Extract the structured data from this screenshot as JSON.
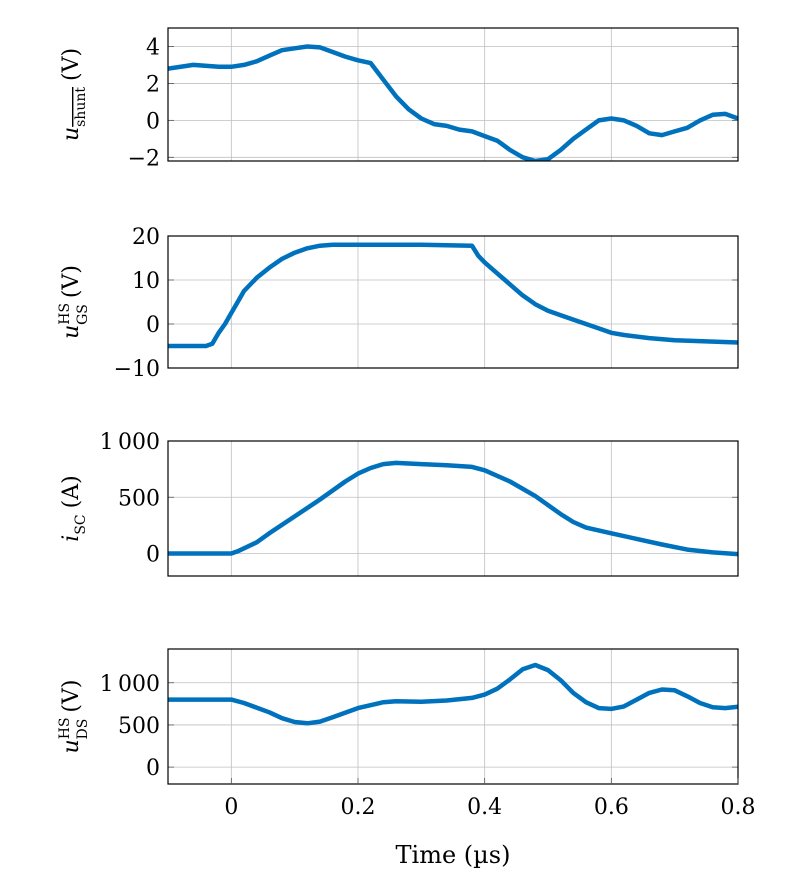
{
  "chart_data": [
    {
      "type": "line",
      "ylabel": {
        "main": "u",
        "sub": "shunt",
        "sup": "",
        "unit": "(V)"
      },
      "xlim": [
        -0.1,
        0.8
      ],
      "ylim": [
        -2.2,
        5
      ],
      "yticks": [
        -2,
        0,
        2,
        4
      ],
      "ytick_labels": [
        "−2",
        "0",
        "2",
        "4"
      ],
      "grid": true,
      "color": "#0072BD",
      "x": [
        -0.1,
        -0.06,
        -0.02,
        0,
        0.02,
        0.04,
        0.06,
        0.08,
        0.1,
        0.12,
        0.14,
        0.16,
        0.18,
        0.2,
        0.22,
        0.24,
        0.26,
        0.28,
        0.3,
        0.32,
        0.34,
        0.36,
        0.38,
        0.4,
        0.42,
        0.44,
        0.46,
        0.48,
        0.5,
        0.52,
        0.54,
        0.56,
        0.58,
        0.6,
        0.62,
        0.64,
        0.66,
        0.68,
        0.7,
        0.72,
        0.74,
        0.76,
        0.78,
        0.8
      ],
      "y": [
        2.8,
        3.0,
        2.9,
        2.9,
        3.0,
        3.2,
        3.5,
        3.8,
        3.9,
        4.0,
        3.95,
        3.7,
        3.45,
        3.25,
        3.1,
        2.2,
        1.3,
        0.6,
        0.1,
        -0.2,
        -0.3,
        -0.5,
        -0.6,
        -0.85,
        -1.1,
        -1.6,
        -2.0,
        -2.2,
        -2.1,
        -1.6,
        -1.0,
        -0.5,
        0.0,
        0.1,
        0.0,
        -0.3,
        -0.7,
        -0.8,
        -0.6,
        -0.4,
        0.0,
        0.3,
        0.35,
        0.1
      ]
    },
    {
      "type": "line",
      "ylabel": {
        "main": "u",
        "sub": "GS",
        "sup": "HS",
        "unit": "(V)"
      },
      "xlim": [
        -0.1,
        0.8
      ],
      "ylim": [
        -10,
        20
      ],
      "yticks": [
        -10,
        0,
        10,
        20
      ],
      "ytick_labels": [
        "−10",
        "0",
        "10",
        "20"
      ],
      "grid": true,
      "color": "#0072BD",
      "x": [
        -0.1,
        -0.04,
        -0.03,
        -0.02,
        -0.01,
        0,
        0.01,
        0.02,
        0.04,
        0.06,
        0.08,
        0.1,
        0.12,
        0.14,
        0.16,
        0.2,
        0.3,
        0.38,
        0.39,
        0.4,
        0.42,
        0.44,
        0.46,
        0.48,
        0.5,
        0.52,
        0.54,
        0.56,
        0.58,
        0.6,
        0.62,
        0.66,
        0.7,
        0.8
      ],
      "y": [
        -5,
        -5,
        -4.5,
        -2,
        0,
        2.5,
        5,
        7.5,
        10.5,
        12.8,
        14.8,
        16.2,
        17.2,
        17.8,
        18,
        18,
        18,
        17.8,
        15.5,
        14,
        11.5,
        9,
        6.5,
        4.5,
        3,
        2,
        1,
        0,
        -1,
        -2,
        -2.5,
        -3.2,
        -3.7,
        -4.2
      ]
    },
    {
      "type": "line",
      "ylabel": {
        "main": "i",
        "sub": "SC",
        "sup": "",
        "unit": "(A)"
      },
      "xlim": [
        -0.1,
        0.8
      ],
      "ylim": [
        -200,
        1000
      ],
      "yticks": [
        0,
        500,
        1000
      ],
      "ytick_labels": [
        "0",
        "500",
        "1 000"
      ],
      "grid": true,
      "color": "#0072BD",
      "x": [
        -0.1,
        0,
        0.01,
        0.04,
        0.06,
        0.1,
        0.14,
        0.18,
        0.2,
        0.22,
        0.24,
        0.26,
        0.3,
        0.34,
        0.38,
        0.4,
        0.44,
        0.48,
        0.5,
        0.52,
        0.54,
        0.56,
        0.6,
        0.64,
        0.68,
        0.72,
        0.76,
        0.8
      ],
      "y": [
        0,
        0,
        20,
        100,
        180,
        330,
        480,
        640,
        710,
        760,
        795,
        805,
        795,
        785,
        770,
        740,
        640,
        510,
        430,
        350,
        280,
        230,
        180,
        130,
        80,
        35,
        10,
        -5
      ]
    },
    {
      "type": "line",
      "ylabel": {
        "main": "u",
        "sub": "DS",
        "sup": "HS",
        "unit": "(V)"
      },
      "xlim": [
        -0.1,
        0.8
      ],
      "ylim": [
        -200,
        1400
      ],
      "yticks": [
        0,
        500,
        1000
      ],
      "ytick_labels": [
        "0",
        "500",
        "1 000"
      ],
      "xticks": [
        0,
        0.2,
        0.4,
        0.6,
        0.8
      ],
      "xtick_labels": [
        "0",
        "0.2",
        "0.4",
        "0.6",
        "0.8"
      ],
      "xlabel": "Time (µs)",
      "grid": true,
      "color": "#0072BD",
      "x": [
        -0.1,
        0,
        0.02,
        0.06,
        0.08,
        0.1,
        0.12,
        0.14,
        0.16,
        0.2,
        0.24,
        0.26,
        0.3,
        0.34,
        0.38,
        0.4,
        0.42,
        0.44,
        0.46,
        0.48,
        0.5,
        0.52,
        0.54,
        0.56,
        0.58,
        0.6,
        0.62,
        0.64,
        0.66,
        0.68,
        0.7,
        0.72,
        0.74,
        0.76,
        0.78,
        0.8
      ],
      "y": [
        800,
        800,
        760,
        650,
        580,
        535,
        520,
        540,
        590,
        700,
        770,
        780,
        775,
        790,
        820,
        860,
        930,
        1040,
        1160,
        1210,
        1150,
        1030,
        880,
        770,
        700,
        690,
        720,
        800,
        880,
        920,
        910,
        840,
        760,
        710,
        700,
        715
      ]
    }
  ]
}
